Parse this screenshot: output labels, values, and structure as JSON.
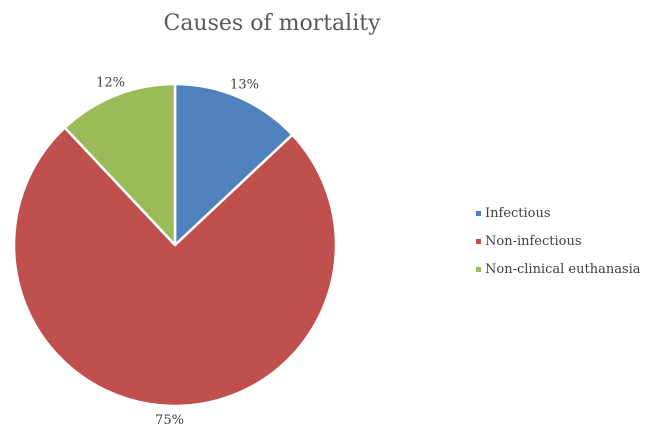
{
  "chart_data": {
    "type": "pie",
    "title": "Causes of mortality",
    "categories": [
      "Infectious",
      "Non-infectious",
      "Non-clinical euthanasia"
    ],
    "values": [
      13,
      75,
      12
    ],
    "labels": [
      "13%",
      "75%",
      "12%"
    ],
    "colors": [
      "#4F81BD",
      "#C0504D",
      "#9BBB59"
    ],
    "start_angle": "12 o'clock",
    "direction": "clockwise",
    "legend": {
      "position": "right",
      "entries": [
        "Infectious",
        "Non-infectious",
        "Non-clinical euthanasia"
      ]
    }
  }
}
